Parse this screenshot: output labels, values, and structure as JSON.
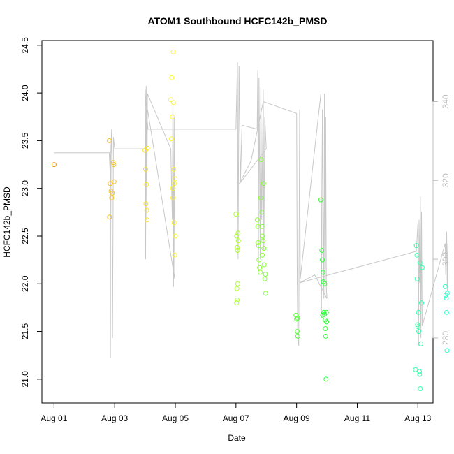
{
  "chart_data": {
    "type": "scatter",
    "title": "ATOM1 Southbound HCFC142b_PMSD",
    "xlabel": "Date",
    "ylabel": "HCFC142b_PMSD",
    "x_ticks": [
      "Aug 01",
      "Aug 03",
      "Aug 05",
      "Aug 07",
      "Aug 09",
      "Aug 11",
      "Aug 13"
    ],
    "x_tick_values": [
      0,
      2,
      4,
      6,
      8,
      10,
      12
    ],
    "xlim": [
      -0.4,
      12.5
    ],
    "ylim": [
      20.75,
      24.55
    ],
    "y_ticks": [
      21.0,
      21.5,
      22.0,
      22.5,
      23.0,
      23.5,
      24.0,
      24.5
    ],
    "y_tick_labels": [
      "21.0",
      "21.5",
      "22.0",
      "22.5",
      "23.0",
      "23.5",
      "24.0",
      "24.5"
    ],
    "right_axis": {
      "ylim": [
        263.5,
        355.5
      ],
      "ticks": [
        280,
        300,
        320,
        340
      ],
      "tick_labels": [
        "280",
        "300",
        "320",
        "340"
      ],
      "color": "#bdbdbd"
    },
    "points": [
      {
        "x": 0.0,
        "y": 23.25
      },
      {
        "x": 1.82,
        "y": 23.5
      },
      {
        "x": 1.85,
        "y": 23.05
      },
      {
        "x": 1.88,
        "y": 22.97
      },
      {
        "x": 1.9,
        "y": 22.9
      },
      {
        "x": 1.92,
        "y": 22.95
      },
      {
        "x": 1.95,
        "y": 23.27
      },
      {
        "x": 1.97,
        "y": 23.25
      },
      {
        "x": 1.83,
        "y": 22.7
      },
      {
        "x": 1.98,
        "y": 23.07
      },
      {
        "x": 3.0,
        "y": 23.4
      },
      {
        "x": 3.02,
        "y": 23.2
      },
      {
        "x": 3.03,
        "y": 22.84
      },
      {
        "x": 3.05,
        "y": 23.04
      },
      {
        "x": 3.06,
        "y": 22.77
      },
      {
        "x": 3.07,
        "y": 22.67
      },
      {
        "x": 3.08,
        "y": 23.42
      },
      {
        "x": 3.85,
        "y": 23.93
      },
      {
        "x": 3.87,
        "y": 23.52
      },
      {
        "x": 3.88,
        "y": 24.16
      },
      {
        "x": 3.9,
        "y": 23.75
      },
      {
        "x": 3.91,
        "y": 23.0
      },
      {
        "x": 3.93,
        "y": 24.43
      },
      {
        "x": 3.94,
        "y": 23.9
      },
      {
        "x": 3.95,
        "y": 23.2
      },
      {
        "x": 3.96,
        "y": 22.64
      },
      {
        "x": 3.97,
        "y": 23.05
      },
      {
        "x": 3.98,
        "y": 22.3
      },
      {
        "x": 4.0,
        "y": 22.5
      },
      {
        "x": 3.99,
        "y": 23.1
      },
      {
        "x": 3.92,
        "y": 22.9
      },
      {
        "x": 6.0,
        "y": 22.73
      },
      {
        "x": 6.02,
        "y": 22.5
      },
      {
        "x": 6.04,
        "y": 22.38
      },
      {
        "x": 6.05,
        "y": 22.35
      },
      {
        "x": 6.07,
        "y": 22.53
      },
      {
        "x": 6.08,
        "y": 22.45
      },
      {
        "x": 6.03,
        "y": 21.95
      },
      {
        "x": 6.06,
        "y": 22.0
      },
      {
        "x": 6.02,
        "y": 21.8
      },
      {
        "x": 6.04,
        "y": 21.83
      },
      {
        "x": 6.7,
        "y": 22.67
      },
      {
        "x": 6.72,
        "y": 22.6
      },
      {
        "x": 6.73,
        "y": 22.43
      },
      {
        "x": 6.75,
        "y": 22.4
      },
      {
        "x": 6.76,
        "y": 22.25
      },
      {
        "x": 6.78,
        "y": 22.17
      },
      {
        "x": 6.8,
        "y": 22.12
      },
      {
        "x": 6.82,
        "y": 22.9
      },
      {
        "x": 6.83,
        "y": 23.3
      },
      {
        "x": 6.85,
        "y": 22.75
      },
      {
        "x": 6.86,
        "y": 22.6
      },
      {
        "x": 6.88,
        "y": 22.5
      },
      {
        "x": 6.9,
        "y": 22.45
      },
      {
        "x": 6.92,
        "y": 22.37
      },
      {
        "x": 6.93,
        "y": 22.2
      },
      {
        "x": 6.95,
        "y": 22.05
      },
      {
        "x": 6.97,
        "y": 22.1
      },
      {
        "x": 6.98,
        "y": 21.9
      },
      {
        "x": 6.91,
        "y": 23.05
      },
      {
        "x": 6.87,
        "y": 22.3
      },
      {
        "x": 7.98,
        "y": 21.67
      },
      {
        "x": 8.0,
        "y": 21.63
      },
      {
        "x": 8.02,
        "y": 21.5
      },
      {
        "x": 8.04,
        "y": 21.45
      },
      {
        "x": 8.03,
        "y": 21.64
      },
      {
        "x": 8.8,
        "y": 22.88
      },
      {
        "x": 8.83,
        "y": 22.35
      },
      {
        "x": 8.85,
        "y": 22.25
      },
      {
        "x": 8.87,
        "y": 22.12
      },
      {
        "x": 8.88,
        "y": 22.02
      },
      {
        "x": 8.9,
        "y": 21.7
      },
      {
        "x": 8.92,
        "y": 21.68
      },
      {
        "x": 8.94,
        "y": 21.62
      },
      {
        "x": 8.95,
        "y": 21.53
      },
      {
        "x": 8.96,
        "y": 21.45
      },
      {
        "x": 8.97,
        "y": 21.0
      },
      {
        "x": 8.98,
        "y": 21.7
      },
      {
        "x": 8.93,
        "y": 22.0
      },
      {
        "x": 8.86,
        "y": 21.67
      },
      {
        "x": 8.99,
        "y": 21.6
      },
      {
        "x": 11.95,
        "y": 22.4
      },
      {
        "x": 11.97,
        "y": 22.3
      },
      {
        "x": 11.98,
        "y": 22.05
      },
      {
        "x": 12.0,
        "y": 21.55
      },
      {
        "x": 12.02,
        "y": 21.7
      },
      {
        "x": 12.03,
        "y": 21.5
      },
      {
        "x": 12.05,
        "y": 21.08
      },
      {
        "x": 12.06,
        "y": 21.05
      },
      {
        "x": 12.08,
        "y": 20.9
      },
      {
        "x": 12.1,
        "y": 21.37
      },
      {
        "x": 12.12,
        "y": 21.8
      },
      {
        "x": 12.14,
        "y": 22.17
      },
      {
        "x": 11.92,
        "y": 21.1
      },
      {
        "x": 12.07,
        "y": 22.22
      },
      {
        "x": 11.99,
        "y": 21.57
      },
      {
        "x": 12.9,
        "y": 21.97
      },
      {
        "x": 12.92,
        "y": 21.88
      },
      {
        "x": 12.94,
        "y": 21.85
      },
      {
        "x": 12.95,
        "y": 21.7
      },
      {
        "x": 12.96,
        "y": 21.3
      },
      {
        "x": 12.97,
        "y": 21.9
      }
    ],
    "line_series_right_axis": [
      [
        0.0,
        327
      ],
      [
        1.82,
        327
      ],
      [
        1.85,
        322
      ],
      [
        1.86,
        275
      ],
      [
        1.87,
        326
      ],
      [
        1.9,
        333
      ],
      [
        1.93,
        280
      ],
      [
        1.96,
        331
      ],
      [
        2.0,
        328
      ],
      [
        3.0,
        328
      ],
      [
        3.01,
        343
      ],
      [
        3.02,
        300
      ],
      [
        3.04,
        344
      ],
      [
        3.06,
        310
      ],
      [
        3.08,
        342
      ],
      [
        3.85,
        328
      ],
      [
        3.9,
        310
      ],
      [
        3.92,
        342
      ],
      [
        3.94,
        293
      ],
      [
        3.96,
        336
      ],
      [
        3.98,
        295
      ],
      [
        3.0,
        342
      ],
      [
        3.1,
        333
      ],
      [
        6.0,
        333
      ],
      [
        6.05,
        350
      ],
      [
        6.07,
        300
      ],
      [
        6.1,
        349
      ],
      [
        6.15,
        320
      ],
      [
        6.2,
        334
      ],
      [
        6.7,
        333
      ],
      [
        6.72,
        348
      ],
      [
        6.74,
        296
      ],
      [
        6.76,
        346
      ],
      [
        6.8,
        300
      ],
      [
        6.82,
        344
      ],
      [
        6.85,
        310
      ],
      [
        6.9,
        343
      ],
      [
        6.92,
        302
      ],
      [
        6.95,
        336
      ],
      [
        7.0,
        328
      ],
      [
        6.1,
        319
      ],
      [
        6.5,
        325
      ],
      [
        6.9,
        340
      ],
      [
        8.0,
        337
      ],
      [
        8.02,
        296
      ],
      [
        8.04,
        280
      ],
      [
        8.07,
        278
      ],
      [
        8.1,
        338
      ],
      [
        8.12,
        295
      ],
      [
        8.8,
        342
      ],
      [
        8.82,
        285
      ],
      [
        8.85,
        338
      ],
      [
        8.9,
        290
      ],
      [
        8.92,
        342
      ],
      [
        8.94,
        287
      ],
      [
        8.96,
        336
      ],
      [
        8.98,
        293
      ],
      [
        9.0,
        290
      ],
      [
        8.6,
        296
      ],
      [
        8.1,
        294
      ],
      [
        11.95,
        302
      ],
      [
        12.0,
        309
      ],
      [
        12.02,
        278
      ],
      [
        12.04,
        310
      ],
      [
        12.06,
        294
      ],
      [
        12.08,
        316
      ],
      [
        12.1,
        280
      ],
      [
        12.12,
        312
      ],
      [
        12.14,
        283
      ],
      [
        12.9,
        304
      ],
      [
        12.92,
        296
      ],
      [
        12.95,
        307
      ],
      [
        12.97,
        292
      ],
      [
        12.99,
        304
      ]
    ],
    "gradient_stops": [
      "#e8961e",
      "#ffff33",
      "#33ff33",
      "#33ffcc"
    ]
  }
}
